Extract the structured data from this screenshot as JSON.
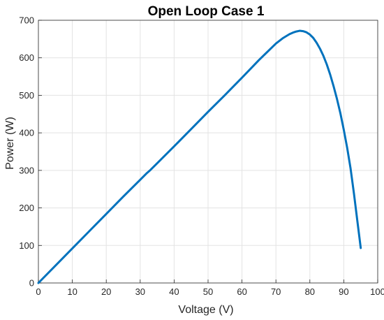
{
  "chart_data": {
    "type": "line",
    "title": "Open Loop Case 1",
    "xlabel": "Voltage (V)",
    "ylabel": "Power (W)",
    "xlim": [
      0,
      100
    ],
    "ylim": [
      0,
      700
    ],
    "xticks": [
      "0",
      "10",
      "20",
      "30",
      "40",
      "50",
      "60",
      "70",
      "80",
      "90",
      "100"
    ],
    "yticks": [
      "0",
      "100",
      "200",
      "300",
      "400",
      "500",
      "600",
      "700"
    ],
    "grid": true,
    "line_color": "#0072BD",
    "series": [
      {
        "x": [
          0,
          5,
          10,
          15,
          20,
          25,
          30,
          32,
          33,
          35,
          40,
          45,
          50,
          55,
          60,
          65,
          70,
          72,
          74,
          75,
          76,
          77,
          78,
          79,
          80,
          81,
          82,
          83,
          84,
          85,
          86,
          87,
          88,
          89,
          90,
          91,
          92,
          93,
          94,
          95
        ],
        "y": [
          0,
          46,
          92,
          138,
          184,
          230,
          275,
          293,
          301,
          319,
          364,
          410,
          456,
          501,
          547,
          594,
          638,
          652,
          663,
          667,
          670,
          672,
          671,
          668,
          662,
          653,
          640,
          624,
          605,
          582,
          555,
          524,
          490,
          452,
          408,
          360,
          305,
          238,
          165,
          93
        ]
      }
    ]
  }
}
